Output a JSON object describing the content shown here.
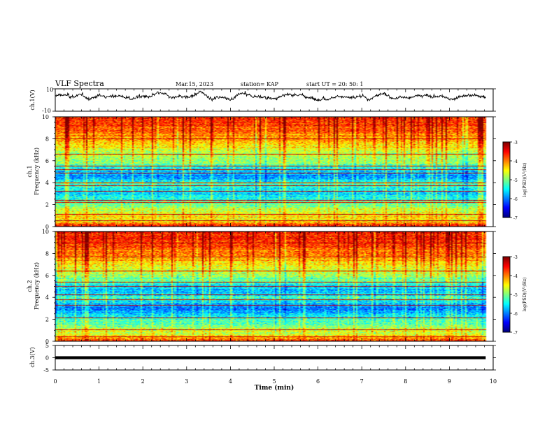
{
  "header": {
    "title": "VLF Spectra",
    "date": "Mar.15, 2023",
    "station": "station= KAP",
    "start": "start  UT  =   20: 50: 1"
  },
  "chart_data": [
    {
      "type": "line",
      "panel": "ch1-waveform",
      "ylabel": "ch.1(V)",
      "ylim": [
        -10,
        10
      ],
      "yticks": [
        -10,
        10
      ],
      "xlim": [
        0,
        10
      ],
      "approx_mean": 3,
      "approx_range": [
        -1.5,
        8
      ],
      "x_extent_min": 9.83
    },
    {
      "type": "heatmap",
      "panel": "ch1-spectrogram",
      "ylabel": "Frequency (kHz)",
      "channel_label": "ch.1",
      "ylim": [
        0,
        10
      ],
      "yticks": [
        0,
        2,
        4,
        6,
        8,
        10
      ],
      "xlim": [
        0,
        10
      ],
      "x_extent_min": 9.83,
      "colorbar": {
        "label": "log(PSD)(V²/Hz)",
        "range": [
          -7,
          -3
        ],
        "ticks": [
          -3,
          -4,
          -5,
          -6,
          -7
        ]
      },
      "freq_profile_log_psd": [
        {
          "f": 0.0,
          "v": -3.4
        },
        {
          "f": 0.4,
          "v": -4.5
        },
        {
          "f": 1.0,
          "v": -4.4
        },
        {
          "f": 1.5,
          "v": -4.8
        },
        {
          "f": 2.0,
          "v": -5.0
        },
        {
          "f": 2.5,
          "v": -5.4
        },
        {
          "f": 3.0,
          "v": -5.7
        },
        {
          "f": 3.6,
          "v": -5.3
        },
        {
          "f": 4.0,
          "v": -5.2
        },
        {
          "f": 4.5,
          "v": -6.0
        },
        {
          "f": 5.0,
          "v": -5.8
        },
        {
          "f": 5.5,
          "v": -5.3
        },
        {
          "f": 6.0,
          "v": -4.9
        },
        {
          "f": 7.0,
          "v": -4.6
        },
        {
          "f": 8.0,
          "v": -4.1
        },
        {
          "f": 9.0,
          "v": -3.8
        },
        {
          "f": 10.0,
          "v": -3.6
        }
      ],
      "line_frequencies_khz": [
        0.5,
        1.1,
        2.2,
        2.4,
        3.2,
        3.7,
        4.0,
        4.9,
        5.2,
        5.5,
        6.6,
        8.0
      ]
    },
    {
      "type": "heatmap",
      "panel": "ch2-spectrogram",
      "ylabel": "Frequency (kHz)",
      "channel_label": "ch.2",
      "ylim": [
        0,
        10
      ],
      "yticks": [
        0,
        2,
        4,
        6,
        8,
        10
      ],
      "xlim": [
        0,
        10
      ],
      "x_extent_min": 9.83,
      "colorbar": {
        "label": "log(PSD)(V²/Hz)",
        "range": [
          -7,
          -3
        ],
        "ticks": [
          -3,
          -4,
          -5,
          -6,
          -7
        ]
      },
      "freq_profile_log_psd": [
        {
          "f": 0.0,
          "v": -3.5
        },
        {
          "f": 0.5,
          "v": -4.6
        },
        {
          "f": 1.0,
          "v": -4.8
        },
        {
          "f": 1.5,
          "v": -5.0
        },
        {
          "f": 2.0,
          "v": -5.3
        },
        {
          "f": 2.5,
          "v": -5.7
        },
        {
          "f": 3.0,
          "v": -6.0
        },
        {
          "f": 3.5,
          "v": -5.6
        },
        {
          "f": 4.0,
          "v": -5.3
        },
        {
          "f": 4.5,
          "v": -5.8
        },
        {
          "f": 5.0,
          "v": -5.6
        },
        {
          "f": 5.5,
          "v": -5.2
        },
        {
          "f": 6.0,
          "v": -4.8
        },
        {
          "f": 7.0,
          "v": -4.4
        },
        {
          "f": 8.0,
          "v": -4.0
        },
        {
          "f": 9.0,
          "v": -3.7
        },
        {
          "f": 10.0,
          "v": -3.5
        }
      ],
      "line_frequencies_khz": [
        0.4,
        1.0,
        2.1,
        3.3,
        3.8,
        4.2,
        5.0,
        5.4,
        6.4,
        7.7,
        9.0
      ]
    },
    {
      "type": "line",
      "panel": "ch3-waveform",
      "ylabel": "ch.3(V)",
      "ylim": [
        -5,
        5
      ],
      "yticks": [
        -5,
        0,
        5
      ],
      "ytick_labels": [
        "-5",
        "0",
        "5"
      ],
      "xlim": [
        0,
        10
      ],
      "approx_level": 0,
      "approx_half_width": 0.6,
      "x_extent_min": 9.83
    }
  ],
  "x_axis": {
    "label": "Time  (min)",
    "ticks": [
      0,
      1,
      2,
      3,
      4,
      5,
      6,
      7,
      8,
      9,
      10
    ],
    "tick_labels": [
      "0",
      "1",
      "2",
      "3",
      "4",
      "5",
      "6",
      "7",
      "8",
      "9",
      "10"
    ]
  }
}
